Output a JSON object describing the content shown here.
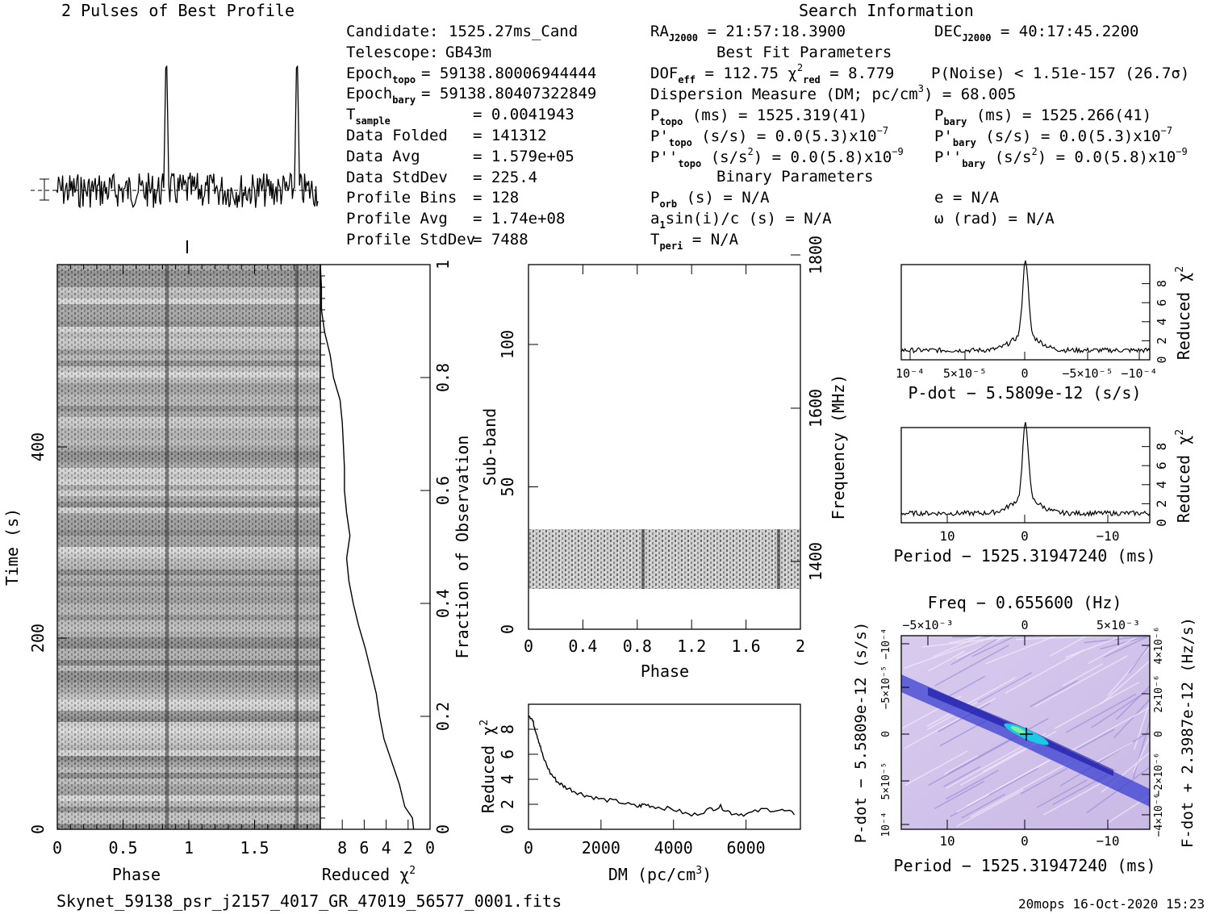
{
  "header": {
    "profile_title": "2 Pulses of Best Profile",
    "search_title": "Search Information",
    "best_fit_title": "Best Fit Parameters",
    "binary_title": "Binary Parameters"
  },
  "info_left": [
    {
      "label": "Candidate:",
      "value": "1525.27ms_Cand"
    },
    {
      "label": "Telescope:",
      "value": "GB43m"
    },
    {
      "label": "Epoch",
      "sub": "topo",
      "value": "= 59138.80006944444"
    },
    {
      "label": "Epoch",
      "sub": "bary",
      "value": "= 59138.80407322849"
    },
    {
      "label": "T",
      "sub": "sample",
      "value": "=   0.0041943"
    },
    {
      "label": "Data Folded",
      "value": "=   141312"
    },
    {
      "label": "Data Avg",
      "value": "=   1.579e+05"
    },
    {
      "label": "Data StdDev",
      "value": "=   225.4"
    },
    {
      "label": "Profile Bins",
      "value": "=   128"
    },
    {
      "label": "Profile Avg",
      "value": "=   1.74e+08"
    },
    {
      "label": "Profile StdDev",
      "value": "=   7488"
    }
  ],
  "info_mid": {
    "ra": "= 21:57:18.3900",
    "dof": "DOF",
    "dof_val": "= 112.75",
    "chi_val": "= 8.779",
    "pnoise": "P(Noise) < 1.51e-157   (26.7σ)",
    "dm": "Dispersion Measure (DM; pc/cm",
    "dm_val": ") = 68.005",
    "ptopo": "(ms) =  1525.319(41)",
    "pdtopo": "(s/s) = 0.0(5.3)x10",
    "pddtopo": "(s/s",
    "pddtopo_val": ") = 0.0(5.8)x10",
    "porb": "(s) = N/A",
    "asini": "sin(i)/c (s) = N/A",
    "tperi": "= N/A"
  },
  "info_right": {
    "dec": "= 40:17:45.2200",
    "pbary": "(ms) =  1525.266(41)",
    "pdbary": "(s/s) = 0.0(5.3)x10",
    "pddbary": "(s/s",
    "pddbary_val": ") = 0.0(5.8)x10",
    "e": "e = N/A",
    "omega": "ω (rad) = N/A"
  },
  "axes": {
    "time_label": "Time (s)",
    "phase_label": "Phase",
    "redchi_label": "Reduced χ",
    "fraction_label": "Fraction of Observation",
    "subband_label": "Sub-band",
    "frequency_label": "Frequency (MHz)",
    "dm_label": "DM (pc/cm",
    "pdot_label": "P-dot − 5.5809e-12 (s/s)",
    "period_label": "Period − 1525.31947240 (ms)",
    "freq_label": "Freq − 0.655600 (Hz)",
    "fdot_label": "F-dot + 2.3987e-12 (Hz/s)",
    "pdot_left_label": "P-dot − 5.5809e-12 (s/s)"
  },
  "footer": {
    "filename": "Skynet_59138_psr_j2157_4017_GR_47019_56577_0001.fits",
    "stamp": "20mops 16-Oct-2020 15:23"
  },
  "chart_data": [
    {
      "type": "line",
      "name": "profile",
      "x_range": [
        0,
        2
      ],
      "peaks_at": [
        0.84,
        1.84
      ]
    },
    {
      "type": "heatmap",
      "name": "time-phase",
      "xlabel": "Phase",
      "ylabel": "Time (s)",
      "x_ticks": [
        "0",
        "0.5",
        "1",
        "1.5"
      ],
      "y_ticks": [
        "0",
        "200",
        "400"
      ],
      "xlim": [
        0,
        2
      ],
      "ylim": [
        0,
        590
      ]
    },
    {
      "type": "line",
      "name": "time-redchi",
      "xlabel": "Reduced χ2",
      "x_ticks": [
        "8",
        "6",
        "4",
        "2",
        "0"
      ],
      "fraction_ticks": [
        "0",
        "0.2",
        "0.4",
        "0.6",
        "0.8",
        "1"
      ],
      "x": [
        1.5,
        1.6,
        2.3,
        2.8,
        3.5,
        4.2,
        4.6,
        4.9,
        5.4,
        5.9,
        6.5,
        7.0,
        7.4,
        7.6,
        7.3,
        7.6,
        7.8,
        7.8,
        7.9,
        8.0,
        8.2,
        8.8,
        9.1,
        9.6,
        9.9,
        9.9,
        10.0
      ],
      "y": [
        0.0,
        0.02,
        0.04,
        0.08,
        0.12,
        0.16,
        0.2,
        0.24,
        0.28,
        0.32,
        0.36,
        0.4,
        0.44,
        0.48,
        0.52,
        0.56,
        0.6,
        0.64,
        0.68,
        0.72,
        0.76,
        0.8,
        0.84,
        0.88,
        0.92,
        0.96,
        1.0
      ]
    },
    {
      "type": "heatmap",
      "name": "subband-phase",
      "xlabel": "Phase",
      "ylabel": "Sub-band",
      "x_ticks": [
        "0",
        "0.4",
        "0.8",
        "1.2",
        "1.6",
        "2"
      ],
      "y_ticks": [
        "0",
        "50",
        "100"
      ],
      "freq_ticks": [
        "1400",
        "1600",
        "1800"
      ],
      "filled_subbands": [
        14,
        35
      ],
      "ylim": [
        0,
        128
      ]
    },
    {
      "type": "line",
      "name": "dm-redchi",
      "xlabel": "DM (pc/cm3)",
      "ylabel": "Reduced χ2",
      "x_ticks": [
        "0",
        "2000",
        "4000",
        "6000"
      ],
      "y_ticks": [
        "0",
        "2",
        "4",
        "6",
        "8"
      ],
      "x": [
        0,
        100,
        200,
        300,
        400,
        600,
        800,
        1000,
        1300,
        1600,
        2000,
        2500,
        3000,
        3200,
        3500,
        4000,
        4500,
        5000,
        5300,
        5600,
        6000,
        6500,
        7000,
        7400
      ],
      "y": [
        9.2,
        8.8,
        7.9,
        6.9,
        5.8,
        4.5,
        3.8,
        3.4,
        3.0,
        2.7,
        2.4,
        2.2,
        1.8,
        2.0,
        1.8,
        1.6,
        1.1,
        1.6,
        1.8,
        1.3,
        1.2,
        1.6,
        1.5,
        1.2
      ],
      "xlim": [
        0,
        7500
      ],
      "ylim": [
        0,
        10
      ]
    },
    {
      "type": "line",
      "name": "pdot-redchi",
      "xlabel": "P-dot − 5.5809e-12 (s/s)",
      "ylabel": "Reduced χ2",
      "x_ticks": [
        "10⁻⁴",
        "5×10⁻⁵",
        "0",
        "−5×10⁻⁵",
        "−10⁻⁴"
      ],
      "y_ticks": [
        "0",
        "2",
        "4",
        "6",
        "8"
      ],
      "peak_value": 9.0,
      "base_value": 1.0
    },
    {
      "type": "line",
      "name": "period-redchi",
      "xlabel": "Period − 1525.31947240 (ms)",
      "ylabel": "Reduced χ2",
      "x_ticks": [
        "10",
        "0",
        "−10"
      ],
      "y_ticks": [
        "0",
        "2",
        "4",
        "6",
        "8"
      ],
      "peak_value": 9.0,
      "base_value": 1.0
    },
    {
      "type": "heatmap",
      "name": "period-pdot",
      "xlabel": "Period − 1525.31947240 (ms)",
      "x_ticks": [
        "10",
        "0",
        "−10"
      ],
      "top_ticks": [
        "−5×10⁻³",
        "0",
        "5×10⁻³"
      ],
      "left_ticks": [
        "10⁻⁴",
        "5×10⁻⁵",
        "0",
        "−5×10⁻⁵",
        "−10⁻⁴"
      ],
      "right_ticks": [
        "−4×10⁻⁶",
        "−2×10⁻⁶",
        "0",
        "2×10⁻⁶",
        "4×10⁻⁶"
      ]
    }
  ]
}
